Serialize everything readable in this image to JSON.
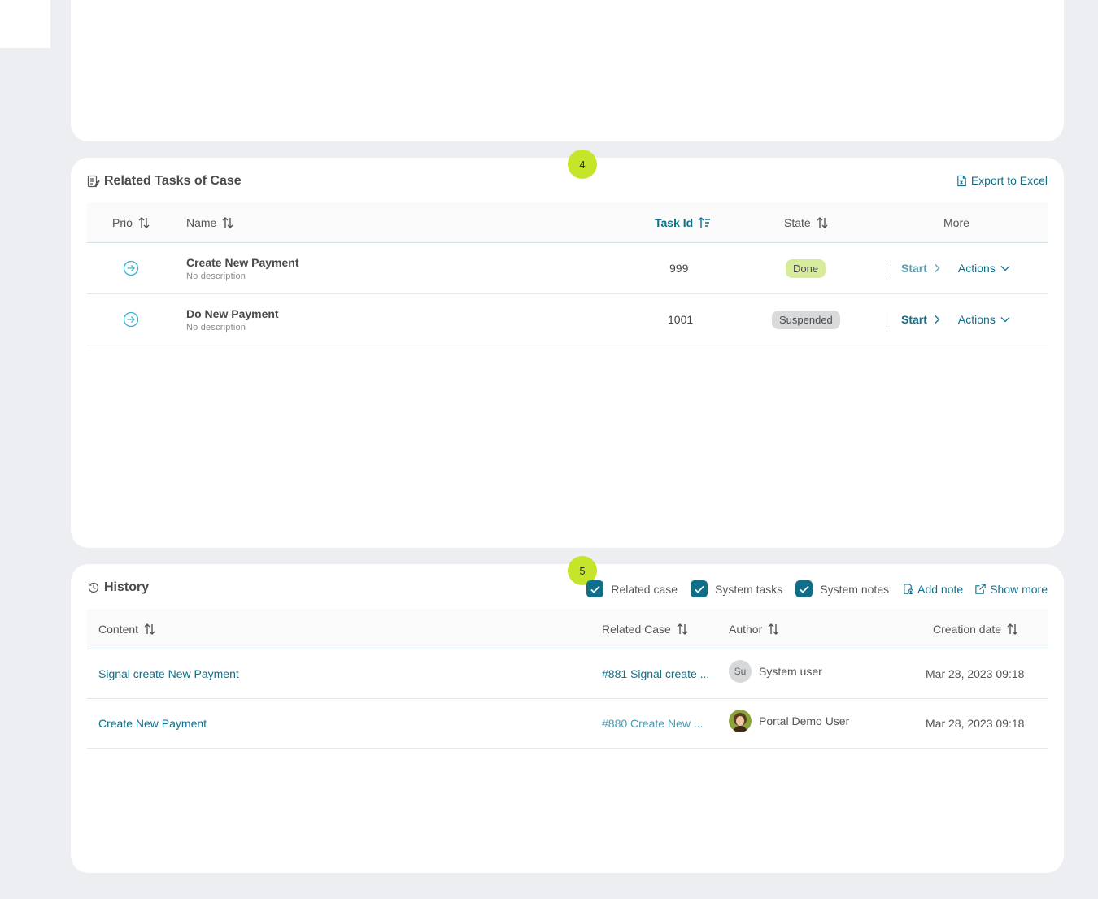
{
  "tasks_card": {
    "badge": "4",
    "title": "Related Tasks of Case",
    "export_label": "Export to Excel",
    "columns": {
      "prio": "Prio",
      "name": "Name",
      "task_id": "Task Id",
      "state": "State",
      "more": "More"
    },
    "rows": [
      {
        "name": "Create New Payment",
        "description": "No description",
        "task_id": "999",
        "state": "Done",
        "start_label": "Start",
        "actions_label": "Actions"
      },
      {
        "name": "Do New Payment",
        "description": "No description",
        "task_id": "1001",
        "state": "Suspended",
        "start_label": "Start",
        "actions_label": "Actions"
      }
    ]
  },
  "history_card": {
    "badge": "5",
    "title": "History",
    "filters": [
      {
        "label": "Related case",
        "checked": true
      },
      {
        "label": "System tasks",
        "checked": true
      },
      {
        "label": "System notes",
        "checked": true
      }
    ],
    "add_note_label": "Add note",
    "show_more_label": "Show more",
    "columns": {
      "content": "Content",
      "related_case": "Related Case",
      "author": "Author",
      "creation_date": "Creation date"
    },
    "rows": [
      {
        "content": "Signal create New Payment",
        "related_case": "#881 Signal create ...",
        "author_initials": "Su",
        "author": "System user",
        "date": "Mar 28, 2023 09:18"
      },
      {
        "content": "Create New Payment",
        "related_case": "#880 Create New ...",
        "author_initials": "",
        "author": "Portal Demo User",
        "date": "Mar 28, 2023 09:18"
      }
    ]
  },
  "colors": {
    "accent": "#0f6f8a",
    "badge": "#c5e52a",
    "done": "#d7ec9b",
    "suspended": "#d9dadc"
  }
}
